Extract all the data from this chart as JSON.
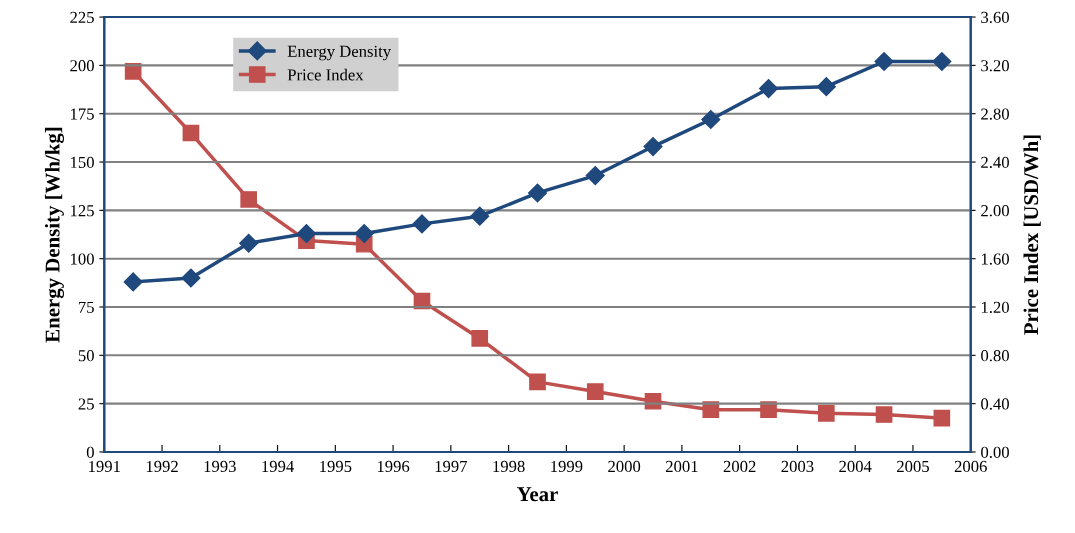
{
  "chart_data": {
    "type": "line",
    "xlabel": "Year",
    "ylabel": "Energy Density [Wh/kg]",
    "y2label": "Price Index [USD/Wh]",
    "x": [
      1991.5,
      1992.5,
      1993.5,
      1994.5,
      1995.5,
      1996.5,
      1997.5,
      1998.5,
      1999.5,
      2000.5,
      2001.5,
      2002.5,
      2003.5,
      2004.5,
      2005.5
    ],
    "series": [
      {
        "name": "Energy Density",
        "color": "#1f497d",
        "marker": "diamond",
        "values": [
          88,
          90,
          108,
          113,
          113,
          118,
          122,
          134,
          143,
          158,
          172,
          188,
          189,
          202,
          202
        ]
      },
      {
        "name": "Price Index",
        "color": "#c0504d",
        "marker": "square",
        "axis": "y2",
        "values": [
          3.15,
          2.64,
          2.09,
          1.75,
          1.72,
          1.25,
          0.94,
          0.58,
          0.5,
          0.42,
          0.35,
          0.35,
          0.32,
          0.31,
          0.28
        ]
      }
    ],
    "xlim": [
      1991,
      2006
    ],
    "xticks": [
      1991,
      1992,
      1993,
      1994,
      1995,
      1996,
      1997,
      1998,
      1999,
      2000,
      2001,
      2002,
      2003,
      2004,
      2005,
      2006
    ],
    "ylim": [
      0,
      225
    ],
    "yticks": [
      0,
      25,
      50,
      75,
      100,
      125,
      150,
      175,
      200,
      225
    ],
    "y2lim": [
      0,
      3.6
    ],
    "y2ticks": [
      {
        "value": 0,
        "label": "0.00"
      },
      {
        "value": 0.4,
        "label": "0.40"
      },
      {
        "value": 0.8,
        "label": "0.80"
      },
      {
        "value": 1.2,
        "label": "1.20"
      },
      {
        "value": 1.6,
        "label": "1.60"
      },
      {
        "value": 2.0,
        "label": "2.00"
      },
      {
        "value": 2.4,
        "label": "2.40"
      },
      {
        "value": 2.8,
        "label": "2.80"
      },
      {
        "value": 3.2,
        "label": "3.20"
      },
      {
        "value": 3.6,
        "label": "3.60"
      }
    ],
    "grid": "y",
    "legend": "top left"
  }
}
